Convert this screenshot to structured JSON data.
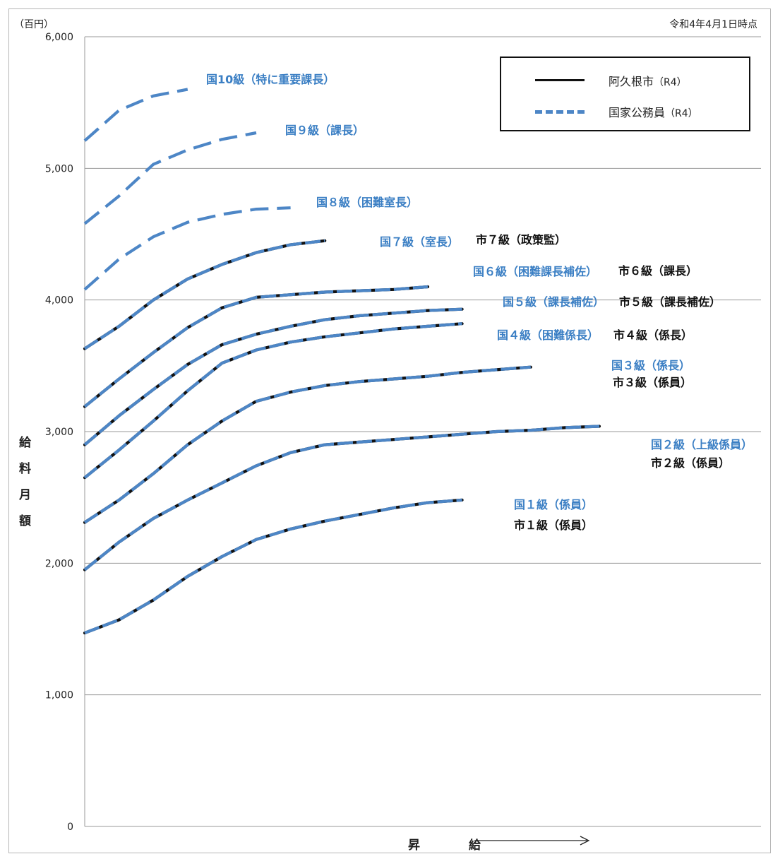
{
  "unit_label": "（百円）",
  "date_label": "令和4年4月1日時点",
  "colors": {
    "national": "#4d86c6",
    "city": "#111111",
    "grid": "#9a9a9a",
    "text_blue": "#3b7fc4"
  },
  "legend": [
    {
      "label": "阿久根市",
      "sub": "（R4）",
      "style": "solid"
    },
    {
      "label": "国家公務員",
      "sub": "（R4）",
      "style": "dashed"
    }
  ],
  "chart_data": {
    "type": "line",
    "title": "",
    "ylabel": "給料月額",
    "xlabel": "昇　給",
    "ylim": [
      0,
      6000
    ],
    "yticks": [
      "0",
      "1,000",
      "2,000",
      "3,000",
      "4,000",
      "5,000",
      "6,000"
    ],
    "grid": true,
    "legend_position": "top-right",
    "series": [
      {
        "grade": 10,
        "national_label": "国10級（特に重要課長）",
        "city_label": "",
        "x": [
          0,
          1,
          2,
          3
        ],
        "values": [
          5210,
          5440,
          5550,
          5600
        ]
      },
      {
        "grade": 9,
        "national_label": "国９級（課長）",
        "city_label": "",
        "x": [
          0,
          1,
          2,
          3,
          4,
          5
        ],
        "values": [
          4580,
          4790,
          5030,
          5140,
          5220,
          5270
        ]
      },
      {
        "grade": 8,
        "national_label": "国８級（困難室長）",
        "city_label": "",
        "x": [
          0,
          1,
          2,
          3,
          4,
          5,
          6
        ],
        "values": [
          4080,
          4310,
          4480,
          4590,
          4650,
          4690,
          4700
        ]
      },
      {
        "grade": 7,
        "national_label": "国７級（室長）",
        "city_label": "市７級（政策監）",
        "x": [
          0,
          1,
          2,
          3,
          4,
          5,
          6,
          7
        ],
        "values": [
          3630,
          3800,
          4000,
          4160,
          4270,
          4360,
          4420,
          4450
        ]
      },
      {
        "grade": 6,
        "national_label": "国６級（困難課長補佐）",
        "city_label": "市６級（課長）",
        "x": [
          0,
          1,
          2,
          3,
          4,
          5,
          6,
          7,
          8,
          9,
          10
        ],
        "values": [
          3190,
          3400,
          3600,
          3790,
          3940,
          4020,
          4040,
          4060,
          4070,
          4080,
          4100
        ]
      },
      {
        "grade": 5,
        "national_label": "国５級（課長補佐）",
        "city_label": "市５級（課長補佐）",
        "x": [
          0,
          1,
          2,
          3,
          4,
          5,
          6,
          7,
          8,
          9,
          10,
          11
        ],
        "values": [
          2900,
          3120,
          3320,
          3510,
          3660,
          3740,
          3800,
          3850,
          3880,
          3900,
          3920,
          3930
        ]
      },
      {
        "grade": 4,
        "national_label": "国４級（困難係長）",
        "city_label": "市４級（係長）",
        "x": [
          0,
          1,
          2,
          3,
          4,
          5,
          6,
          7,
          8,
          9,
          10,
          11
        ],
        "values": [
          2650,
          2860,
          3080,
          3310,
          3520,
          3620,
          3680,
          3720,
          3750,
          3780,
          3800,
          3820
        ]
      },
      {
        "grade": 3,
        "national_label": "国３級（係長）",
        "city_label": "市３級（係員）",
        "x": [
          0,
          1,
          2,
          3,
          4,
          5,
          6,
          7,
          8,
          9,
          10,
          11,
          12,
          13
        ],
        "values": [
          2310,
          2480,
          2680,
          2900,
          3080,
          3230,
          3300,
          3350,
          3380,
          3400,
          3420,
          3450,
          3470,
          3490
        ]
      },
      {
        "grade": 2,
        "national_label": "国２級（上級係員）",
        "city_label": "市２級（係員）",
        "x": [
          0,
          1,
          2,
          3,
          4,
          5,
          6,
          7,
          8,
          9,
          10,
          11,
          12,
          13,
          14,
          15
        ],
        "values": [
          1950,
          2160,
          2340,
          2480,
          2610,
          2740,
          2840,
          2900,
          2920,
          2940,
          2960,
          2980,
          3000,
          3010,
          3030,
          3040
        ]
      },
      {
        "grade": 1,
        "national_label": "国１級（係員）",
        "city_label": "市１級（係員）",
        "x": [
          0,
          1,
          2,
          3,
          4,
          5,
          6,
          7,
          8,
          9,
          10,
          11
        ],
        "values": [
          1470,
          1570,
          1720,
          1900,
          2050,
          2180,
          2260,
          2320,
          2370,
          2420,
          2460,
          2480
        ]
      }
    ]
  }
}
